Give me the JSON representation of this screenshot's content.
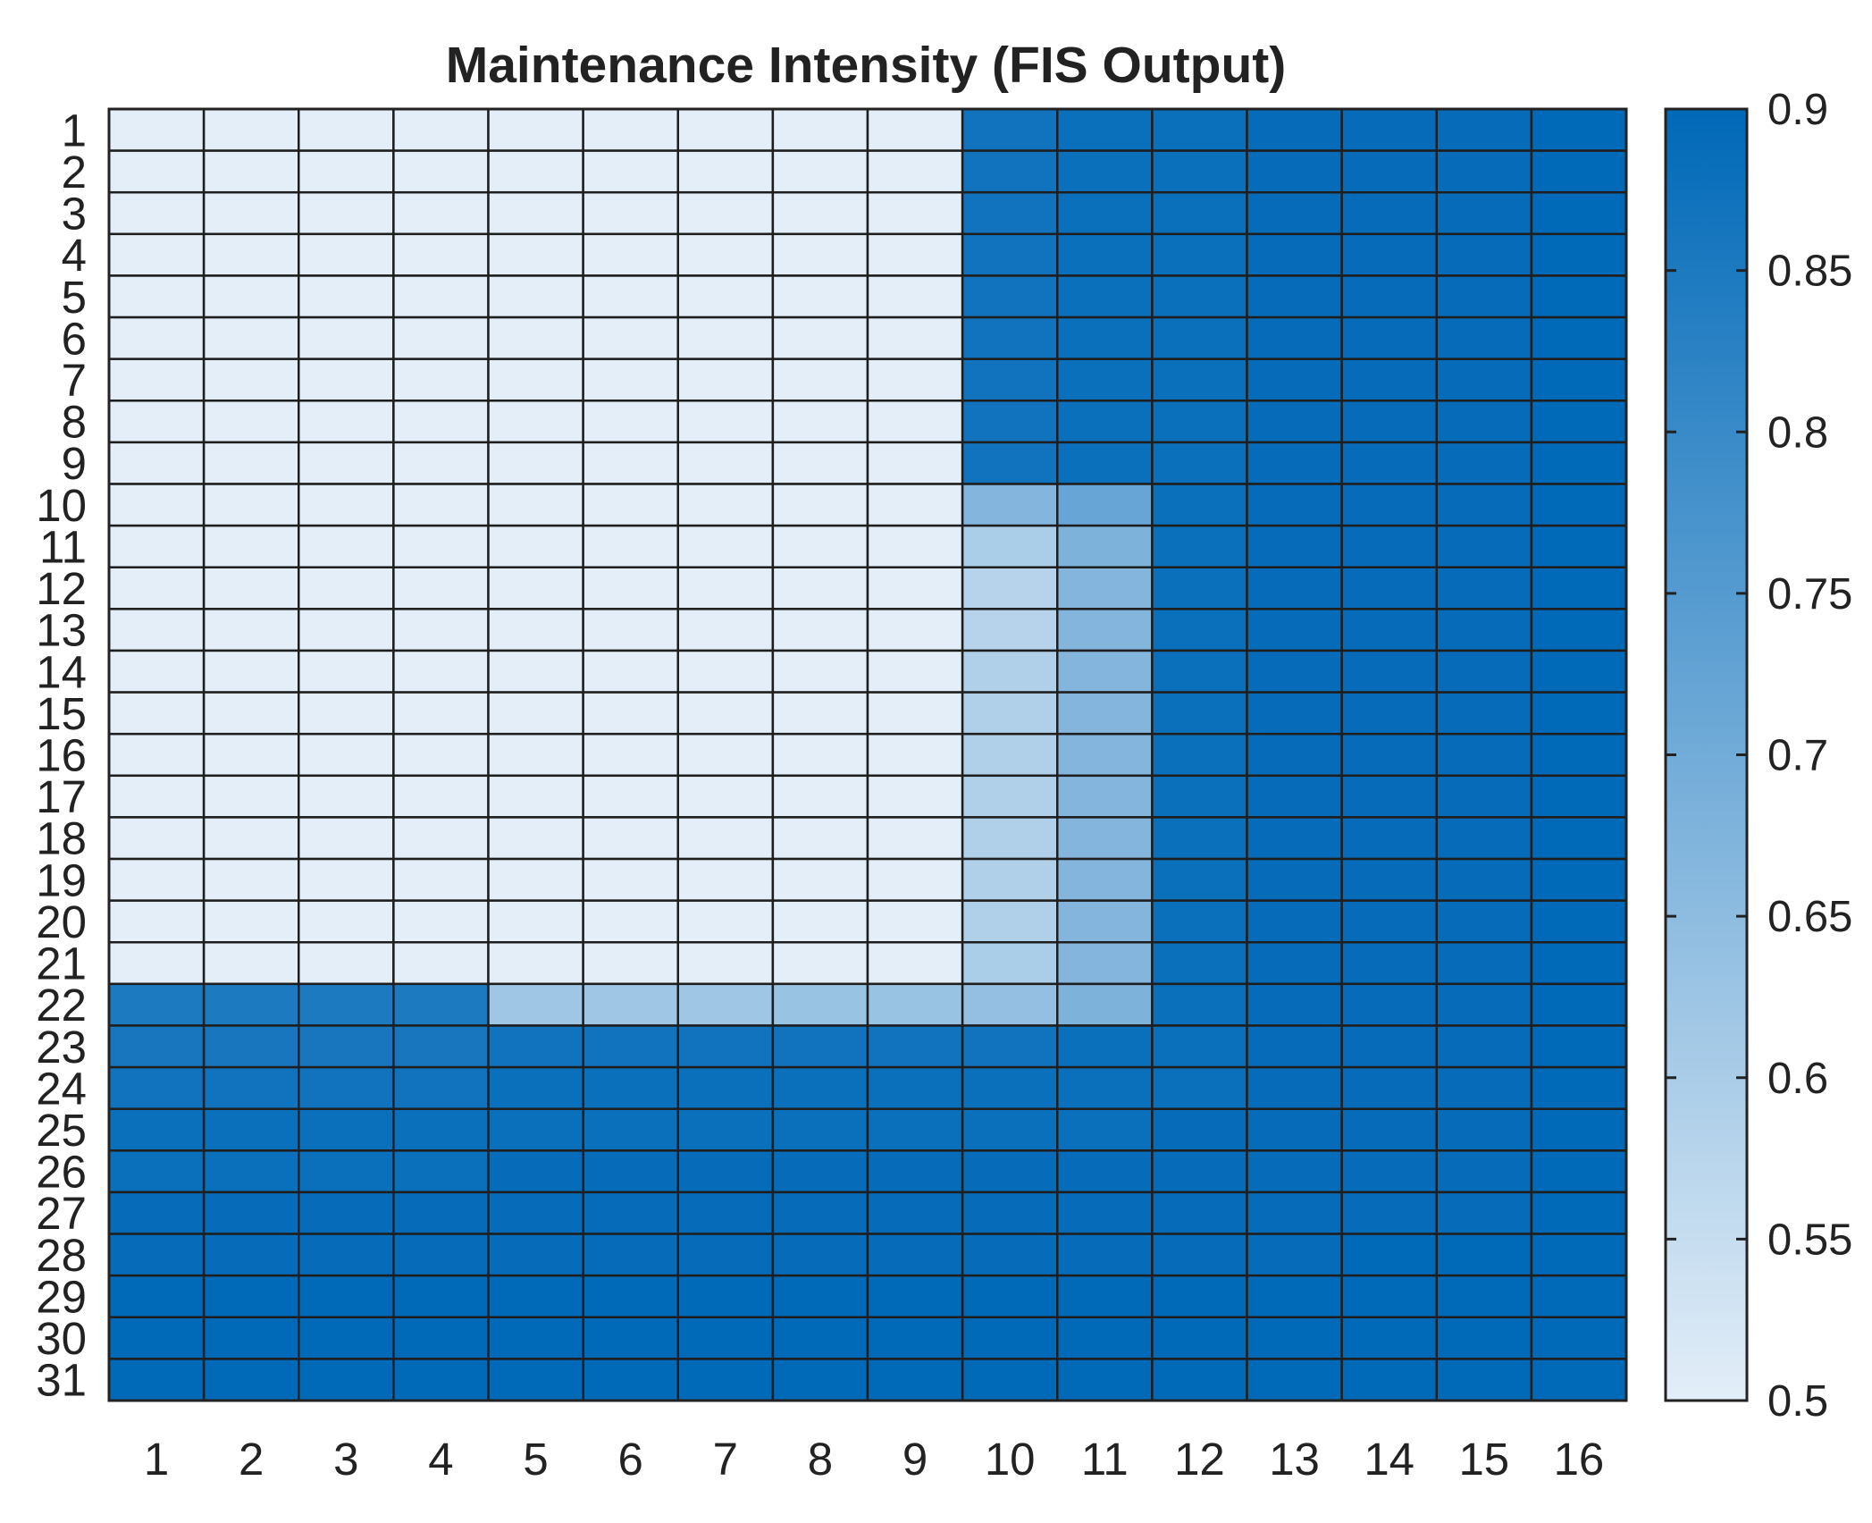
{
  "chart_data": {
    "type": "heatmap",
    "title": "Maintenance Intensity (FIS Output)",
    "xlabel": "",
    "ylabel": "",
    "x_categories": [
      "1",
      "2",
      "3",
      "4",
      "5",
      "6",
      "7",
      "8",
      "9",
      "10",
      "11",
      "12",
      "13",
      "14",
      "15",
      "16"
    ],
    "y_categories": [
      "1",
      "2",
      "3",
      "4",
      "5",
      "6",
      "7",
      "8",
      "9",
      "10",
      "11",
      "12",
      "13",
      "14",
      "15",
      "16",
      "17",
      "18",
      "19",
      "20",
      "21",
      "22",
      "23",
      "24",
      "25",
      "26",
      "27",
      "28",
      "29",
      "30",
      "31"
    ],
    "color_range": [
      0.5,
      0.9
    ],
    "colorbar_ticks": [
      "0.5",
      "0.55",
      "0.6",
      "0.65",
      "0.7",
      "0.75",
      "0.8",
      "0.85",
      "0.9"
    ],
    "colormap": {
      "low": "#e3eef8",
      "high": "#0069b8"
    },
    "grid": true,
    "values": [
      [
        0.5,
        0.5,
        0.5,
        0.5,
        0.5,
        0.5,
        0.5,
        0.5,
        0.5,
        0.87,
        0.88,
        0.88,
        0.89,
        0.89,
        0.89,
        0.9
      ],
      [
        0.5,
        0.5,
        0.5,
        0.5,
        0.5,
        0.5,
        0.5,
        0.5,
        0.5,
        0.87,
        0.88,
        0.88,
        0.89,
        0.89,
        0.89,
        0.9
      ],
      [
        0.5,
        0.5,
        0.5,
        0.5,
        0.5,
        0.5,
        0.5,
        0.5,
        0.5,
        0.87,
        0.88,
        0.88,
        0.89,
        0.89,
        0.89,
        0.9
      ],
      [
        0.5,
        0.5,
        0.5,
        0.5,
        0.5,
        0.5,
        0.5,
        0.5,
        0.5,
        0.87,
        0.88,
        0.88,
        0.89,
        0.89,
        0.89,
        0.9
      ],
      [
        0.5,
        0.5,
        0.5,
        0.5,
        0.5,
        0.5,
        0.5,
        0.5,
        0.5,
        0.87,
        0.88,
        0.88,
        0.89,
        0.89,
        0.89,
        0.9
      ],
      [
        0.5,
        0.5,
        0.5,
        0.5,
        0.5,
        0.5,
        0.5,
        0.5,
        0.5,
        0.87,
        0.88,
        0.88,
        0.89,
        0.89,
        0.89,
        0.9
      ],
      [
        0.5,
        0.5,
        0.5,
        0.5,
        0.5,
        0.5,
        0.5,
        0.5,
        0.5,
        0.87,
        0.88,
        0.88,
        0.89,
        0.89,
        0.89,
        0.9
      ],
      [
        0.5,
        0.5,
        0.5,
        0.5,
        0.5,
        0.5,
        0.5,
        0.5,
        0.5,
        0.87,
        0.88,
        0.88,
        0.89,
        0.89,
        0.89,
        0.9
      ],
      [
        0.5,
        0.5,
        0.5,
        0.5,
        0.5,
        0.5,
        0.5,
        0.5,
        0.5,
        0.87,
        0.88,
        0.88,
        0.89,
        0.89,
        0.89,
        0.9
      ],
      [
        0.5,
        0.5,
        0.5,
        0.5,
        0.5,
        0.5,
        0.5,
        0.5,
        0.5,
        0.67,
        0.72,
        0.88,
        0.89,
        0.89,
        0.89,
        0.9
      ],
      [
        0.5,
        0.5,
        0.5,
        0.5,
        0.5,
        0.5,
        0.5,
        0.5,
        0.5,
        0.6,
        0.68,
        0.88,
        0.89,
        0.89,
        0.89,
        0.9
      ],
      [
        0.5,
        0.5,
        0.5,
        0.5,
        0.5,
        0.5,
        0.5,
        0.5,
        0.5,
        0.58,
        0.67,
        0.88,
        0.89,
        0.89,
        0.89,
        0.9
      ],
      [
        0.5,
        0.5,
        0.5,
        0.5,
        0.5,
        0.5,
        0.5,
        0.5,
        0.5,
        0.58,
        0.67,
        0.88,
        0.89,
        0.89,
        0.89,
        0.9
      ],
      [
        0.5,
        0.5,
        0.5,
        0.5,
        0.5,
        0.5,
        0.5,
        0.5,
        0.5,
        0.59,
        0.67,
        0.88,
        0.89,
        0.89,
        0.89,
        0.9
      ],
      [
        0.5,
        0.5,
        0.5,
        0.5,
        0.5,
        0.5,
        0.5,
        0.5,
        0.5,
        0.59,
        0.67,
        0.88,
        0.89,
        0.89,
        0.89,
        0.9
      ],
      [
        0.5,
        0.5,
        0.5,
        0.5,
        0.5,
        0.5,
        0.5,
        0.5,
        0.5,
        0.59,
        0.67,
        0.88,
        0.89,
        0.89,
        0.89,
        0.9
      ],
      [
        0.5,
        0.5,
        0.5,
        0.5,
        0.5,
        0.5,
        0.5,
        0.5,
        0.5,
        0.59,
        0.67,
        0.88,
        0.89,
        0.89,
        0.89,
        0.9
      ],
      [
        0.5,
        0.5,
        0.5,
        0.5,
        0.5,
        0.5,
        0.5,
        0.5,
        0.5,
        0.59,
        0.67,
        0.88,
        0.89,
        0.89,
        0.89,
        0.9
      ],
      [
        0.5,
        0.5,
        0.5,
        0.5,
        0.5,
        0.5,
        0.5,
        0.5,
        0.5,
        0.59,
        0.67,
        0.88,
        0.89,
        0.89,
        0.89,
        0.9
      ],
      [
        0.5,
        0.5,
        0.5,
        0.5,
        0.5,
        0.5,
        0.5,
        0.5,
        0.5,
        0.59,
        0.67,
        0.88,
        0.89,
        0.89,
        0.89,
        0.9
      ],
      [
        0.5,
        0.5,
        0.5,
        0.5,
        0.5,
        0.5,
        0.5,
        0.5,
        0.5,
        0.6,
        0.67,
        0.88,
        0.89,
        0.89,
        0.89,
        0.9
      ],
      [
        0.85,
        0.85,
        0.85,
        0.85,
        0.62,
        0.62,
        0.62,
        0.63,
        0.63,
        0.64,
        0.68,
        0.88,
        0.89,
        0.89,
        0.89,
        0.9
      ],
      [
        0.86,
        0.86,
        0.86,
        0.86,
        0.87,
        0.87,
        0.87,
        0.87,
        0.87,
        0.87,
        0.88,
        0.88,
        0.89,
        0.89,
        0.89,
        0.9
      ],
      [
        0.87,
        0.87,
        0.87,
        0.87,
        0.88,
        0.88,
        0.88,
        0.88,
        0.88,
        0.88,
        0.88,
        0.88,
        0.89,
        0.89,
        0.89,
        0.9
      ],
      [
        0.88,
        0.88,
        0.88,
        0.88,
        0.88,
        0.88,
        0.88,
        0.88,
        0.88,
        0.88,
        0.88,
        0.89,
        0.89,
        0.89,
        0.89,
        0.9
      ],
      [
        0.88,
        0.88,
        0.88,
        0.88,
        0.89,
        0.89,
        0.89,
        0.89,
        0.89,
        0.89,
        0.89,
        0.89,
        0.89,
        0.89,
        0.89,
        0.9
      ],
      [
        0.89,
        0.89,
        0.89,
        0.89,
        0.89,
        0.89,
        0.89,
        0.89,
        0.89,
        0.89,
        0.89,
        0.89,
        0.89,
        0.89,
        0.89,
        0.9
      ],
      [
        0.89,
        0.89,
        0.89,
        0.89,
        0.89,
        0.89,
        0.89,
        0.89,
        0.89,
        0.89,
        0.89,
        0.89,
        0.89,
        0.9,
        0.9,
        0.9
      ],
      [
        0.9,
        0.9,
        0.9,
        0.9,
        0.9,
        0.9,
        0.9,
        0.9,
        0.9,
        0.9,
        0.9,
        0.9,
        0.9,
        0.9,
        0.9,
        0.9
      ],
      [
        0.9,
        0.9,
        0.9,
        0.9,
        0.9,
        0.9,
        0.9,
        0.9,
        0.9,
        0.9,
        0.9,
        0.9,
        0.9,
        0.9,
        0.9,
        0.9
      ],
      [
        0.9,
        0.9,
        0.9,
        0.9,
        0.9,
        0.9,
        0.9,
        0.9,
        0.9,
        0.9,
        0.9,
        0.9,
        0.9,
        0.9,
        0.9,
        0.9
      ]
    ]
  }
}
